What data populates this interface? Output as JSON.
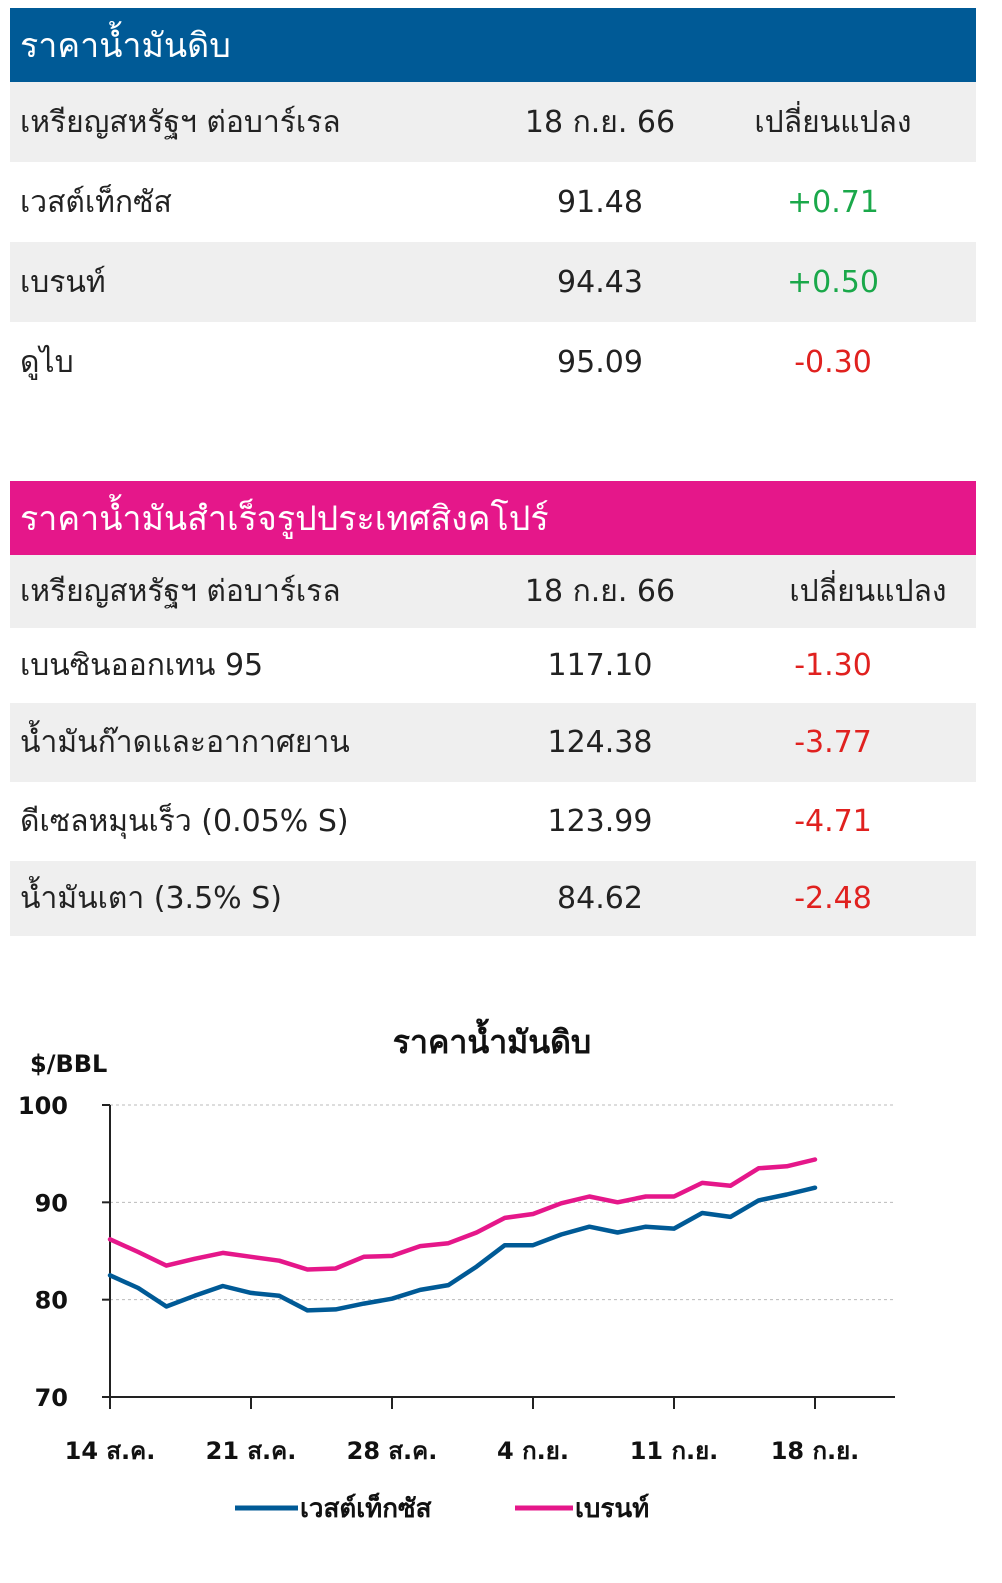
{
  "crude_table": {
    "title": "ราคาน้ำมันดิบ",
    "header": {
      "col1": "เหรียญสหรัฐฯ ต่อบาร์เรล",
      "col2": "18 ก.ย. 66",
      "col3": "เปลี่ยนแปลง"
    },
    "rows": [
      {
        "name": "เวสต์เท็กซัส",
        "price": "91.48",
        "change": "+0.71"
      },
      {
        "name": "เบรนท์",
        "price": "94.43",
        "change": "+0.50"
      },
      {
        "name": "ดูไบ",
        "price": "95.09",
        "change": "-0.30"
      }
    ]
  },
  "products_table": {
    "title": "ราคาน้ำมันสำเร็จรูปประเทศสิงคโปร์",
    "header": {
      "col1": "เหรียญสหรัฐฯ ต่อบาร์เรล",
      "col2": "18 ก.ย. 66",
      "col3": "เปลี่ยนแปลง"
    },
    "rows": [
      {
        "name": "เบนซินออกเทน 95",
        "price": "117.10",
        "change": "-1.30"
      },
      {
        "name": "น้ำมันก๊าดและอากาศยาน",
        "price": "124.38",
        "change": "-3.77"
      },
      {
        "name": "ดีเซลหมุนเร็ว (0.05% S)",
        "price": "123.99",
        "change": "-4.71"
      },
      {
        "name": "น้ำมันเตา (3.5% S)",
        "price": "84.62",
        "change": "-2.48"
      }
    ]
  },
  "colors": {
    "blue": "#005a96",
    "pink": "#e5178a",
    "positive": "#1aa84a",
    "negative": "#e0211f"
  },
  "chart_data": {
    "type": "line",
    "title": "ราคาน้ำมันดิบ",
    "ylabel": "$/BBL",
    "ylim": [
      70,
      100
    ],
    "yticks": [
      100,
      90,
      80,
      70
    ],
    "x_ticks": [
      "14 ส.ค.",
      "21 ส.ค.",
      "28 ส.ค.",
      "4 ก.ย.",
      "11 ก.ย.",
      "18 ก.ย."
    ],
    "grid": true,
    "legend_position": "bottom",
    "x": [
      "14 ส.ค.",
      "15 ส.ค.",
      "16 ส.ค.",
      "17 ส.ค.",
      "18 ส.ค.",
      "21 ส.ค.",
      "22 ส.ค.",
      "23 ส.ค.",
      "24 ส.ค.",
      "25 ส.ค.",
      "28 ส.ค.",
      "29 ส.ค.",
      "30 ส.ค.",
      "31 ส.ค.",
      "1 ก.ย.",
      "4 ก.ย.",
      "5 ก.ย.",
      "6 ก.ย.",
      "7 ก.ย.",
      "8 ก.ย.",
      "11 ก.ย.",
      "12 ก.ย.",
      "13 ก.ย.",
      "14 ก.ย.",
      "15 ก.ย.",
      "18 ก.ย."
    ],
    "series": [
      {
        "name": "เวสต์เท็กซัส",
        "color": "#005a96",
        "values": [
          82.5,
          81.2,
          79.3,
          80.4,
          81.4,
          80.7,
          80.4,
          78.9,
          79.0,
          79.6,
          80.1,
          81.0,
          81.5,
          83.4,
          85.6,
          85.6,
          86.7,
          87.5,
          86.9,
          87.5,
          87.3,
          88.9,
          88.5,
          90.2,
          90.8,
          91.5
        ]
      },
      {
        "name": "เบรนท์",
        "color": "#e5178a",
        "values": [
          86.2,
          84.9,
          83.5,
          84.2,
          84.8,
          84.4,
          84.0,
          83.1,
          83.2,
          84.4,
          84.5,
          85.5,
          85.8,
          86.9,
          88.4,
          88.8,
          89.9,
          90.6,
          90.0,
          90.6,
          90.6,
          92.0,
          91.7,
          93.5,
          93.7,
          94.4
        ]
      }
    ]
  }
}
